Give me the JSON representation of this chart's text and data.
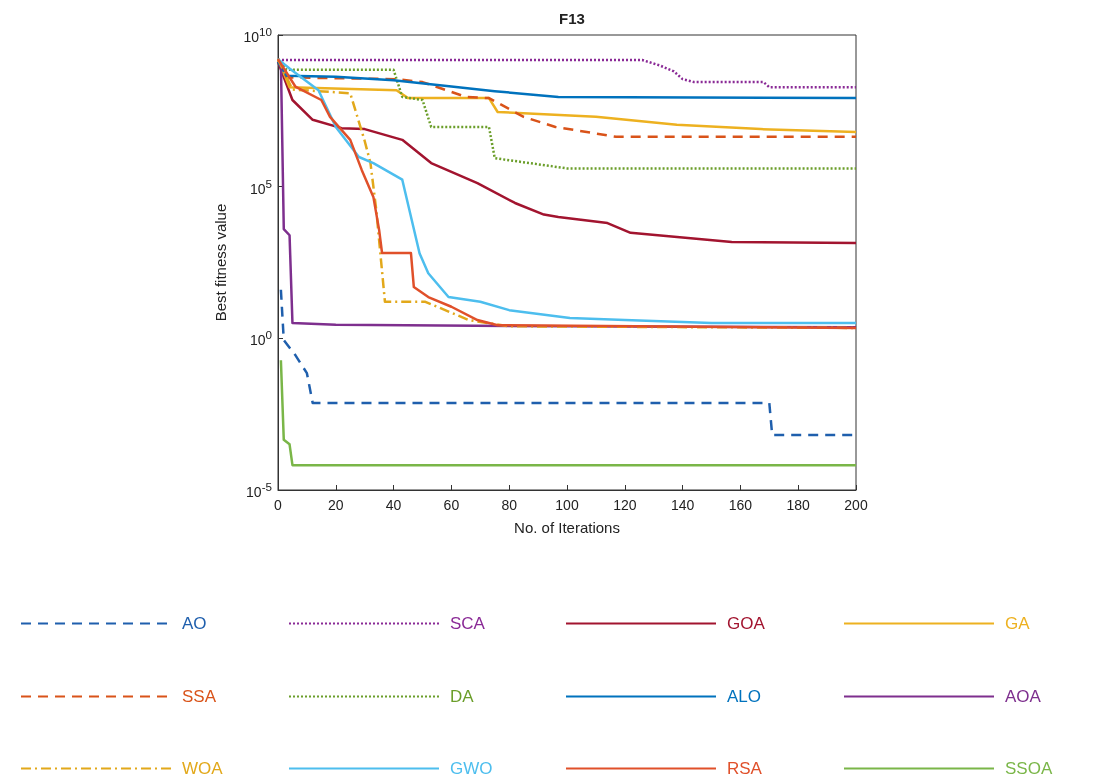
{
  "chart_data": {
    "type": "line",
    "title": "F13",
    "xlabel": "No. of Iterations",
    "ylabel": "Best fitness value",
    "log": "y",
    "xlim": [
      0,
      200
    ],
    "xticks": [
      0,
      20,
      40,
      60,
      80,
      100,
      120,
      140,
      160,
      180,
      200
    ],
    "ylim": [
      1e-05,
      10000000000
    ],
    "yticks": [
      {
        "value": 1e-05,
        "label": "10$^{-5}$"
      },
      {
        "value": 1,
        "label": "10$^{0}$"
      },
      {
        "value": 100000,
        "label": "10$^{5}$"
      },
      {
        "value": 10000000000,
        "label": "10$^{10}$"
      }
    ],
    "grid": false,
    "legend": "bottom",
    "marker": "none",
    "series": [
      {
        "name": "AO",
        "color": "#1f5fad",
        "line_style": "dashed",
        "x": [
          1,
          2,
          6,
          10,
          12,
          170,
          171,
          200
        ],
        "values": [
          40,
          0.87,
          0.28,
          0.071,
          0.0074,
          0.0074,
          0.00065,
          0.00065
        ]
      },
      {
        "name": "SCA",
        "color": "#8a2a96",
        "line_style": "dotted",
        "x": [
          0,
          126,
          132,
          137,
          140,
          144,
          168,
          170,
          200
        ],
        "values": [
          1500000000,
          1500000000,
          1000000000,
          630000000,
          350000000,
          280000000,
          280000000,
          190000000,
          190000000
        ]
      },
      {
        "name": "GOA",
        "color": "#a2142f",
        "line_style": "solid",
        "x": [
          0,
          5,
          12,
          22,
          30,
          43,
          53,
          69,
          82,
          92,
          97,
          114,
          122,
          157,
          200
        ],
        "values": [
          1300000000,
          72000000,
          16000000,
          8500000,
          7900000,
          3500000,
          600000,
          130000,
          29000,
          12000,
          10000,
          6300,
          3000,
          1500,
          1400
        ]
      },
      {
        "name": "GA",
        "color": "#edb120",
        "line_style": "solid",
        "x": [
          0,
          4,
          41,
          45,
          73,
          76,
          110,
          138,
          167,
          200
        ],
        "values": [
          1600000000,
          190000000,
          150000000,
          83000000,
          83000000,
          29000000,
          20000000,
          11000000,
          7900000,
          6300000
        ]
      },
      {
        "name": "SSA",
        "color": "#d95319",
        "line_style": "dashed",
        "x": [
          0,
          3,
          41,
          50,
          65,
          73,
          85,
          96,
          117,
          200
        ],
        "values": [
          1600000000,
          400000000,
          350000000,
          280000000,
          91000000,
          83000000,
          20000000,
          9300000,
          4400000,
          4400000
        ]
      },
      {
        "name": "DA",
        "color": "#6b9e2a",
        "line_style": "dotted",
        "x": [
          0,
          3,
          40,
          43,
          50,
          53,
          73,
          75,
          100,
          200
        ],
        "values": [
          1600000000,
          710000000,
          710000000,
          91000000,
          72000000,
          9300000,
          9300000,
          870000,
          400000,
          400000
        ]
      },
      {
        "name": "ALO",
        "color": "#0072bd",
        "line_style": "solid",
        "x": [
          0,
          3,
          20,
          40,
          60,
          75,
          97,
          200
        ],
        "values": [
          1300000000,
          450000000,
          420000000,
          320000000,
          200000000,
          140000000,
          91000000,
          83000000
        ]
      },
      {
        "name": "AOA",
        "color": "#7e2f8e",
        "line_style": "solid",
        "x": [
          1,
          2,
          4,
          5,
          20,
          100,
          200
        ],
        "values": [
          1300000000,
          4000,
          2500,
          3.2,
          2.8,
          2.5,
          2.3
        ]
      },
      {
        "name": "WOA",
        "color": "#e2a81a",
        "line_style": "dashdot",
        "x": [
          0,
          5,
          25,
          30,
          32,
          34,
          37,
          51,
          66,
          80,
          200
        ],
        "values": [
          1600000000,
          160000000,
          120000000,
          3200000,
          600000,
          17000,
          16,
          16,
          4,
          2.5,
          2.2
        ]
      },
      {
        "name": "GWO",
        "color": "#4dbeee",
        "line_style": "solid",
        "x": [
          0,
          4,
          14,
          20,
          28,
          33,
          43,
          49,
          52,
          59,
          70,
          80,
          101,
          120,
          150,
          200
        ],
        "values": [
          1600000000,
          790000000,
          150000000,
          9300000,
          950000,
          600000,
          170000,
          630,
          140,
          23,
          16,
          8.5,
          4.7,
          4,
          3.2,
          3.2
        ]
      },
      {
        "name": "RSA",
        "color": "#e0502a",
        "line_style": "solid",
        "x": [
          0,
          6,
          15,
          18,
          25,
          29,
          33,
          35,
          36,
          46,
          47,
          52,
          60,
          69,
          76,
          200
        ],
        "values": [
          1600000000,
          200000000,
          72000000,
          20000000,
          3500000,
          350000,
          46000,
          3700,
          650,
          650,
          49,
          23,
          11,
          4,
          2.7,
          2.2
        ]
      },
      {
        "name": "SSOA",
        "color": "#7ab648",
        "line_style": "solid",
        "x": [
          1,
          2,
          4,
          5,
          200
        ],
        "values": [
          0.19,
          0.00045,
          0.00032,
          6.6e-05,
          6.6e-05
        ]
      }
    ]
  }
}
